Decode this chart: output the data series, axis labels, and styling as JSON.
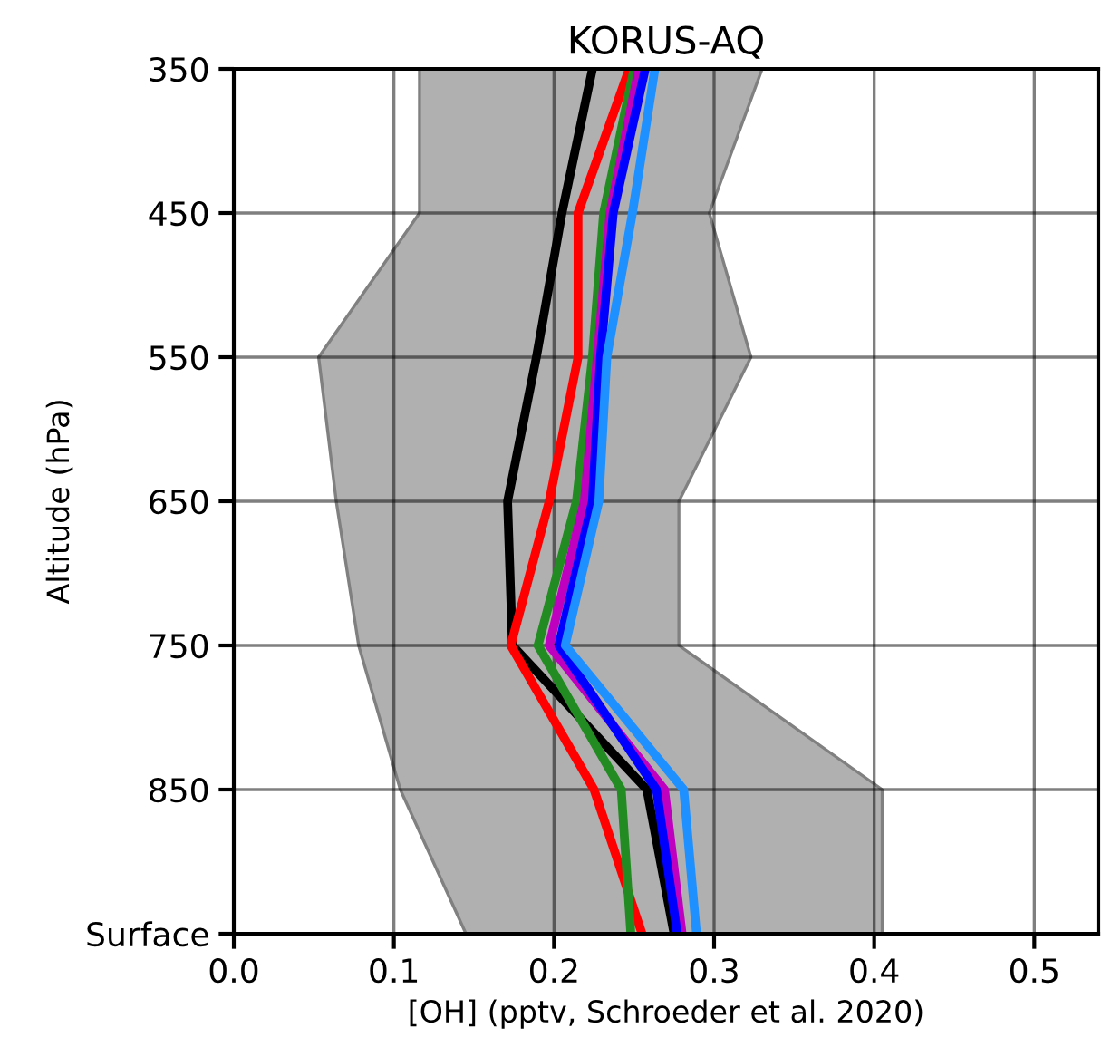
{
  "chart_data": {
    "type": "line",
    "orientation": "horizontal",
    "title": "KORUS-AQ",
    "xlabel": "[OH] (pptv, Schroeder et al. 2020)",
    "ylabel": "Altitude (hPa)",
    "categories": [
      "350",
      "450",
      "550",
      "650",
      "750",
      "850",
      "Surface"
    ],
    "xlim": [
      0,
      0.54
    ],
    "xticks": [
      {
        "value": 0,
        "label": "0.0"
      },
      {
        "value": 0.1,
        "label": "0.1"
      },
      {
        "value": 0.2,
        "label": "0.2"
      },
      {
        "value": 0.3,
        "label": "0.3"
      },
      {
        "value": 0.4,
        "label": "0.4"
      },
      {
        "value": 0.5,
        "label": "0.5"
      }
    ],
    "grid": true,
    "marker": "none",
    "line_style": "solid",
    "series": [
      {
        "color": "#b0b0b0",
        "values": [
          null,
          null,
          null,
          null,
          null,
          null,
          null
        ],
        "lower": [
          0.116,
          0.116,
          0.053,
          0.064,
          0.078,
          0.104,
          0.145
        ],
        "upper": [
          0.33,
          0.297,
          0.323,
          0.278,
          0.278,
          0.405,
          0.405
        ]
      },
      {
        "color": "#000000",
        "values": [
          0.224,
          0.205,
          0.189,
          0.171,
          0.174,
          0.258,
          0.275
        ]
      },
      {
        "color": "#ff0000",
        "values": [
          0.247,
          0.215,
          0.215,
          0.197,
          0.173,
          0.225,
          0.255
        ]
      },
      {
        "color": "#228b22",
        "values": [
          0.25,
          0.231,
          0.224,
          0.214,
          0.19,
          0.242,
          0.248
        ]
      },
      {
        "color": "#bf00bf",
        "values": [
          0.253,
          0.235,
          0.227,
          0.219,
          0.197,
          0.269,
          0.28
        ]
      },
      {
        "color": "#0000ff",
        "values": [
          0.257,
          0.237,
          0.229,
          0.224,
          0.203,
          0.264,
          0.277
        ]
      },
      {
        "color": "#1e90ff",
        "values": [
          0.263,
          0.249,
          0.233,
          0.228,
          0.207,
          0.281,
          0.289
        ]
      }
    ]
  }
}
